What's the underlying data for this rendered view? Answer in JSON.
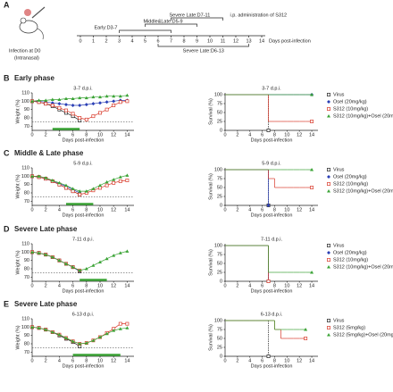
{
  "timeline": {
    "label": "A",
    "infection": "Infection at D0",
    "route": "(Intranasal)",
    "phases_above": [
      {
        "label": "Early:D3-7",
        "days": [
          3,
          7
        ]
      },
      {
        "label": "Middle&Late:D5-9",
        "days": [
          5,
          9
        ]
      },
      {
        "label": "Severe Late:D7-11",
        "days": [
          7,
          11
        ]
      }
    ],
    "phases_below": [
      {
        "label": "Severe Late:D6-13",
        "days": [
          6,
          13
        ]
      }
    ],
    "admin": "i.p. administration of S312",
    "xlabel": "Days post-infection",
    "ticks": [
      0,
      1,
      2,
      3,
      4,
      5,
      6,
      7,
      8,
      9,
      10,
      11,
      12,
      13,
      14
    ]
  },
  "sections": [
    {
      "label": "B",
      "title": "Early phase"
    },
    {
      "label": "C",
      "title": "Middle & Late phase"
    },
    {
      "label": "D",
      "title": "Severe Late phase"
    },
    {
      "label": "E",
      "title": "Severe Late phase"
    }
  ],
  "chart_data": [
    {
      "type": "line",
      "annotation": "3-7 d.p.i.",
      "xlabel": "Days post-infection",
      "ylabel": "Weight (%)",
      "xlim": [
        0,
        15
      ],
      "ylim": [
        65,
        110
      ],
      "xticks": [
        0,
        2,
        4,
        6,
        8,
        10,
        12,
        14
      ],
      "yticks": [
        70,
        80,
        90,
        100,
        110
      ],
      "threshold": 75,
      "treatment_days": [
        3,
        7
      ],
      "x": [
        0,
        1,
        2,
        3,
        4,
        5,
        6,
        7,
        8,
        9,
        10,
        11,
        12,
        13,
        14
      ],
      "series": [
        {
          "color": "#222222",
          "marker": "square",
          "values": [
            100,
            99,
            97,
            94,
            90,
            86,
            82,
            77,
            null,
            null,
            null,
            null,
            null,
            null,
            null
          ]
        },
        {
          "color": "#2b3fb5",
          "marker": "diamond",
          "values": [
            100,
            100,
            99,
            98,
            97,
            96,
            95,
            95,
            96,
            97,
            98,
            99,
            100,
            101,
            101
          ]
        },
        {
          "color": "#d93a2b",
          "marker": "square",
          "values": [
            100,
            99,
            97,
            95,
            92,
            89,
            85,
            80,
            78,
            82,
            86,
            90,
            95,
            99,
            100
          ]
        },
        {
          "color": "#3aa335",
          "marker": "triangle",
          "values": [
            100,
            101,
            101,
            102,
            102,
            103,
            103,
            104,
            104,
            105,
            105,
            106,
            106,
            106,
            107
          ]
        }
      ]
    },
    {
      "type": "step",
      "annotation": "3-7 d.p.i.",
      "xlabel": "Days post-infection",
      "ylabel": "Survival (%)",
      "xlim": [
        0,
        15
      ],
      "ylim": [
        0,
        105
      ],
      "xticks": [
        0,
        2,
        4,
        6,
        8,
        10,
        12,
        14
      ],
      "yticks": [
        0,
        25,
        50,
        75,
        100
      ],
      "x": [
        0,
        1,
        2,
        3,
        4,
        5,
        6,
        7,
        8,
        9,
        10,
        11,
        12,
        13,
        14
      ],
      "series": [
        {
          "name": "Virus",
          "color": "#222222",
          "marker": "square",
          "values": [
            100,
            100,
            100,
            100,
            100,
            100,
            100,
            0,
            null,
            null,
            null,
            null,
            null,
            null,
            null
          ]
        },
        {
          "name": "Osel (20mg/kg)",
          "color": "#2b3fb5",
          "marker": "diamond",
          "values": [
            100,
            100,
            100,
            100,
            100,
            100,
            100,
            100,
            100,
            100,
            100,
            100,
            100,
            100,
            100
          ]
        },
        {
          "name": "S312 (10mg/kg)",
          "color": "#d93a2b",
          "marker": "square",
          "values": [
            100,
            100,
            100,
            100,
            100,
            100,
            100,
            25,
            25,
            25,
            25,
            25,
            25,
            25,
            25
          ]
        },
        {
          "name": "S312 (10mg/kg)+Osel (20mg/kg)",
          "color": "#3aa335",
          "marker": "triangle",
          "values": [
            100,
            100,
            100,
            100,
            100,
            100,
            100,
            100,
            100,
            100,
            100,
            100,
            100,
            100,
            100
          ]
        }
      ]
    },
    {
      "type": "line",
      "annotation": "5-9 d.p.i.",
      "xlabel": "Days post-infection",
      "ylabel": "Weight (%)",
      "xlim": [
        0,
        15
      ],
      "ylim": [
        65,
        110
      ],
      "xticks": [
        0,
        2,
        4,
        6,
        8,
        10,
        12,
        14
      ],
      "yticks": [
        70,
        80,
        90,
        100,
        110
      ],
      "threshold": 75,
      "treatment_days": [
        5,
        9
      ],
      "x": [
        0,
        1,
        2,
        3,
        4,
        5,
        6,
        7,
        8,
        9,
        10,
        11,
        12,
        13,
        14
      ],
      "series": [
        {
          "color": "#222222",
          "marker": "square",
          "values": [
            100,
            99,
            97,
            94,
            90,
            86,
            82,
            78,
            null,
            null,
            null,
            null,
            null,
            null,
            null
          ]
        },
        {
          "color": "#2b3fb5",
          "marker": "diamond",
          "values": [
            100,
            99,
            97,
            94,
            91,
            88,
            84,
            80,
            null,
            null,
            null,
            null,
            null,
            null,
            null
          ]
        },
        {
          "color": "#d93a2b",
          "marker": "square",
          "values": [
            100,
            99,
            97,
            94,
            90,
            86,
            82,
            78,
            80,
            83,
            86,
            89,
            92,
            94,
            95
          ]
        },
        {
          "color": "#3aa335",
          "marker": "triangle",
          "values": [
            100,
            100,
            98,
            95,
            92,
            89,
            85,
            82,
            82,
            85,
            89,
            93,
            96,
            99,
            101
          ]
        }
      ]
    },
    {
      "type": "step",
      "annotation": "5-9 d.p.i.",
      "xlabel": "Days post-infection",
      "ylabel": "Survival (%)",
      "xlim": [
        0,
        15
      ],
      "ylim": [
        0,
        105
      ],
      "xticks": [
        0,
        2,
        4,
        6,
        8,
        10,
        12,
        14
      ],
      "yticks": [
        0,
        25,
        50,
        75,
        100
      ],
      "x": [
        0,
        1,
        2,
        3,
        4,
        5,
        6,
        7,
        8,
        9,
        10,
        11,
        12,
        13,
        14
      ],
      "series": [
        {
          "name": "Virus",
          "color": "#222222",
          "marker": "square",
          "values": [
            100,
            100,
            100,
            100,
            100,
            100,
            100,
            0,
            null,
            null,
            null,
            null,
            null,
            null,
            null
          ]
        },
        {
          "name": "Osel (20mg/kg)",
          "color": "#2b3fb5",
          "marker": "diamond",
          "values": [
            100,
            100,
            100,
            100,
            100,
            100,
            100,
            0,
            null,
            null,
            null,
            null,
            null,
            null,
            null
          ]
        },
        {
          "name": "S312 (10mg/kg)",
          "color": "#d93a2b",
          "marker": "square",
          "values": [
            100,
            100,
            100,
            100,
            100,
            100,
            100,
            75,
            50,
            50,
            50,
            50,
            50,
            50,
            50
          ]
        },
        {
          "name": "S312 (10mg/kg)+Osel (20mg/kg)",
          "color": "#3aa335",
          "marker": "triangle",
          "values": [
            100,
            100,
            100,
            100,
            100,
            100,
            100,
            100,
            100,
            100,
            100,
            100,
            100,
            100,
            100
          ]
        }
      ]
    },
    {
      "type": "line",
      "annotation": "7-11 d.p.i.",
      "xlabel": "Days post-infection",
      "ylabel": "Weight (%)",
      "xlim": [
        0,
        15
      ],
      "ylim": [
        65,
        110
      ],
      "xticks": [
        0,
        2,
        4,
        6,
        8,
        10,
        12,
        14
      ],
      "yticks": [
        70,
        80,
        90,
        100,
        110
      ],
      "threshold": 75,
      "treatment_days": [
        7,
        11
      ],
      "x": [
        0,
        1,
        2,
        3,
        4,
        5,
        6,
        7,
        8,
        9,
        10,
        11,
        12,
        13,
        14
      ],
      "series": [
        {
          "color": "#222222",
          "marker": "square",
          "values": [
            100,
            99,
            97,
            94,
            90,
            86,
            82,
            77,
            null,
            null,
            null,
            null,
            null,
            null,
            null
          ]
        },
        {
          "color": "#2b3fb5",
          "marker": "diamond",
          "values": [
            100,
            99,
            97,
            94,
            90,
            86,
            82,
            77,
            null,
            null,
            null,
            null,
            null,
            null,
            null
          ]
        },
        {
          "color": "#d93a2b",
          "marker": "square",
          "values": [
            100,
            99,
            97,
            94,
            90,
            86,
            82,
            78,
            null,
            null,
            null,
            null,
            null,
            null,
            null
          ]
        },
        {
          "color": "#3aa335",
          "marker": "triangle",
          "values": [
            100,
            99,
            97,
            94,
            90,
            86,
            82,
            78,
            80,
            84,
            88,
            92,
            96,
            99,
            101
          ]
        }
      ]
    },
    {
      "type": "step",
      "annotation": "7-11 d.p.i.",
      "xlabel": "Days post-infection",
      "ylabel": "Survival (%)",
      "xlim": [
        0,
        15
      ],
      "ylim": [
        0,
        105
      ],
      "xticks": [
        0,
        2,
        4,
        6,
        8,
        10,
        12,
        14
      ],
      "yticks": [
        0,
        25,
        50,
        75,
        100
      ],
      "x": [
        0,
        1,
        2,
        3,
        4,
        5,
        6,
        7,
        8,
        9,
        10,
        11,
        12,
        13,
        14
      ],
      "series": [
        {
          "name": "Virus",
          "color": "#222222",
          "marker": "square",
          "values": [
            100,
            100,
            100,
            100,
            100,
            100,
            100,
            0,
            null,
            null,
            null,
            null,
            null,
            null,
            null
          ]
        },
        {
          "name": "Osel (20mg/kg)",
          "color": "#2b3fb5",
          "marker": "diamond",
          "values": [
            100,
            100,
            100,
            100,
            100,
            100,
            100,
            0,
            null,
            null,
            null,
            null,
            null,
            null,
            null
          ]
        },
        {
          "name": "S312 (10mg/kg)",
          "color": "#d93a2b",
          "marker": "square",
          "values": [
            100,
            100,
            100,
            100,
            100,
            100,
            100,
            0,
            null,
            null,
            null,
            null,
            null,
            null,
            null
          ]
        },
        {
          "name": "S312 (10mg/kg)+Osel (20mg/kg)",
          "color": "#3aa335",
          "marker": "triangle",
          "values": [
            100,
            100,
            100,
            100,
            100,
            100,
            100,
            25,
            25,
            25,
            25,
            25,
            25,
            25,
            25
          ]
        }
      ]
    },
    {
      "type": "line",
      "annotation": "6-13 d.p.i.",
      "xlabel": "Days post-infection",
      "ylabel": "Weight (%)",
      "xlim": [
        0,
        15
      ],
      "ylim": [
        65,
        110
      ],
      "xticks": [
        0,
        2,
        4,
        6,
        8,
        10,
        12,
        14
      ],
      "yticks": [
        70,
        80,
        90,
        100,
        110
      ],
      "threshold": 75,
      "treatment_days": [
        6,
        13
      ],
      "x": [
        0,
        1,
        2,
        3,
        4,
        5,
        6,
        7,
        8,
        9,
        10,
        11,
        12,
        13,
        14
      ],
      "series": [
        {
          "color": "#222222",
          "marker": "square",
          "values": [
            100,
            99,
            97,
            94,
            90,
            86,
            82,
            77,
            null,
            null,
            null,
            null,
            null,
            null,
            null
          ]
        },
        {
          "color": "#d93a2b",
          "marker": "square",
          "values": [
            100,
            99,
            97,
            94,
            91,
            87,
            83,
            80,
            81,
            84,
            88,
            93,
            98,
            104,
            104
          ]
        },
        {
          "color": "#3aa335",
          "marker": "triangle",
          "values": [
            100,
            99,
            97,
            94,
            91,
            87,
            83,
            80,
            81,
            84,
            88,
            92,
            96,
            98,
            99
          ]
        }
      ]
    },
    {
      "type": "step",
      "annotation": "6-13 d.p.i.",
      "xlabel": "Days post-infection",
      "ylabel": "Survival (%)",
      "xlim": [
        0,
        15
      ],
      "ylim": [
        0,
        105
      ],
      "xticks": [
        0,
        2,
        4,
        6,
        8,
        10,
        12,
        14
      ],
      "yticks": [
        0,
        25,
        50,
        75,
        100
      ],
      "x": [
        0,
        1,
        2,
        3,
        4,
        5,
        6,
        7,
        8,
        9,
        10,
        11,
        12,
        13,
        14
      ],
      "series": [
        {
          "name": "Virus",
          "color": "#222222",
          "marker": "square",
          "values": [
            100,
            100,
            100,
            100,
            100,
            100,
            100,
            0,
            null,
            null,
            null,
            null,
            null,
            null,
            null
          ]
        },
        {
          "name": "S312 (5mg/kg)",
          "color": "#d93a2b",
          "marker": "square",
          "values": [
            100,
            100,
            100,
            100,
            100,
            100,
            100,
            100,
            75,
            50,
            50,
            50,
            50,
            50,
            null
          ]
        },
        {
          "name": "S312 (5mg/kg)+Osel (20mg/kg)",
          "color": "#3aa335",
          "marker": "triangle",
          "values": [
            100,
            100,
            100,
            100,
            100,
            100,
            100,
            100,
            75,
            75,
            75,
            75,
            75,
            75,
            null
          ]
        }
      ]
    }
  ]
}
